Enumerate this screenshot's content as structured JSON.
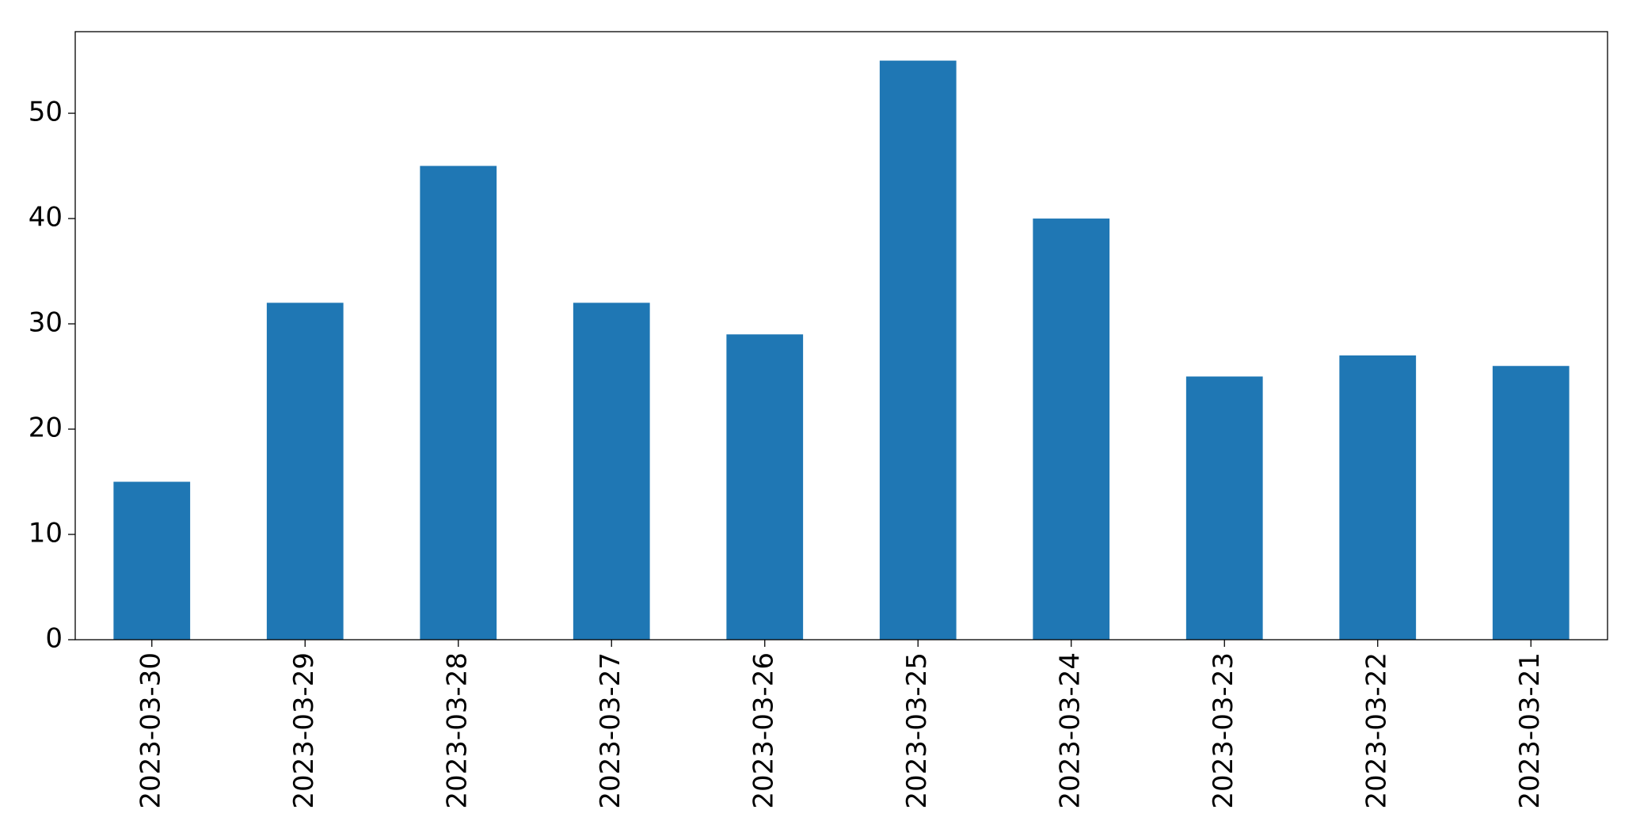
{
  "chart_data": {
    "type": "bar",
    "categories": [
      "2023-03-30",
      "2023-03-29",
      "2023-03-28",
      "2023-03-27",
      "2023-03-26",
      "2023-03-25",
      "2023-03-24",
      "2023-03-23",
      "2023-03-22",
      "2023-03-21"
    ],
    "values": [
      15,
      32,
      45,
      32,
      29,
      55,
      40,
      25,
      27,
      26
    ],
    "color": "#1f77b4",
    "ylim": [
      0,
      57.75
    ],
    "yticks": [
      0,
      10,
      20,
      30,
      40,
      50
    ],
    "grid": false
  }
}
